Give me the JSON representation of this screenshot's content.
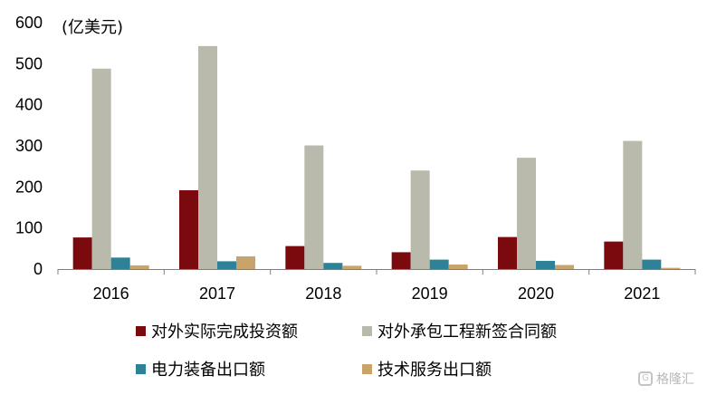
{
  "chart_data": {
    "type": "bar",
    "unit_label": "(亿美元)",
    "categories": [
      "2016",
      "2017",
      "2018",
      "2019",
      "2020",
      "2021"
    ],
    "yticks": [
      "0",
      "100",
      "200",
      "300",
      "400",
      "500",
      "600"
    ],
    "ylim": [
      0,
      600
    ],
    "grid": false,
    "legend_position": "bottom",
    "series": [
      {
        "name": "对外实际完成投资额",
        "color": "#7a0a0e",
        "values": [
          77,
          192,
          56,
          41,
          78,
          67
        ]
      },
      {
        "name": "对外承包工程新签合同额",
        "color": "#b9b9ac",
        "values": [
          488,
          543,
          301,
          240,
          271,
          312
        ]
      },
      {
        "name": "电力装备出口额",
        "color": "#2f8197",
        "values": [
          28,
          19,
          15,
          23,
          20,
          23
        ]
      },
      {
        "name": "技术服务出口额",
        "color": "#c8a46a",
        "values": [
          9,
          31,
          8,
          11,
          10,
          3
        ]
      }
    ]
  },
  "watermark": {
    "icon": "G",
    "text": "格隆汇"
  }
}
